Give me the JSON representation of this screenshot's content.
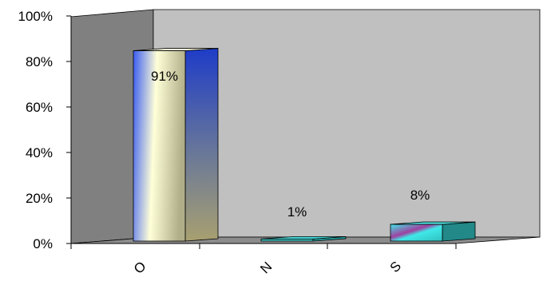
{
  "chart_data": {
    "type": "bar",
    "categories": [
      "O",
      "N",
      "S"
    ],
    "values": [
      91,
      1,
      8
    ],
    "data_labels": [
      "91%",
      "1%",
      "8%"
    ],
    "yticks": [
      "0%",
      "20%",
      "40%",
      "60%",
      "80%",
      "100%"
    ],
    "ylim": [
      0,
      100
    ],
    "grid": false,
    "legend": "none",
    "style": "3d-column",
    "colors": {
      "back_wall": "#c0c0c0",
      "side_wall": "#808080",
      "floor": "#8c8c8c",
      "bar_O_front_start": "#3a5cf0",
      "bar_O_front_mid": "#ffffcc",
      "bar_O_front_end": "#a8a880",
      "bar_O_side_top": "#2040c8",
      "bar_O_side_bottom": "#a8a070",
      "bar_N": "#3cc8c8",
      "bar_S_front": "#40e0e0",
      "bar_S_stripe": "#a040a0",
      "bar_S_side": "#208080"
    }
  }
}
